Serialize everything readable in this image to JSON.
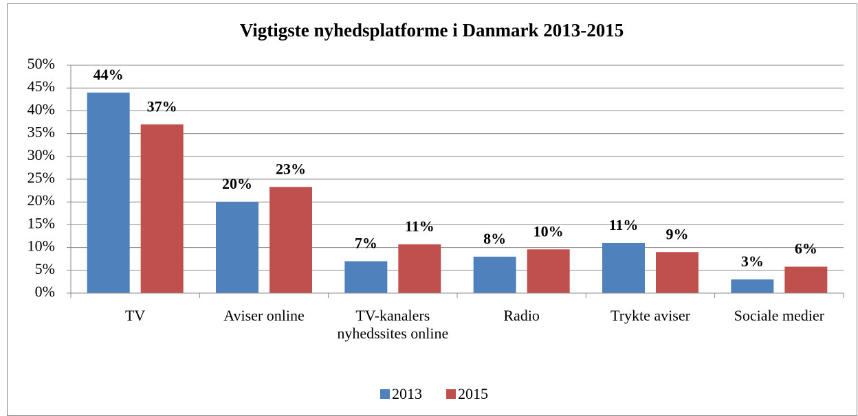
{
  "chart_data": {
    "type": "bar",
    "title": "Vigtigste nyhedsplatforme i Danmark 2013-2015",
    "categories": [
      "TV",
      "Aviser online",
      "TV-kanalers nyhedssites online",
      "Radio",
      "Trykte aviser",
      "Sociale medier"
    ],
    "series": [
      {
        "name": "2013",
        "color": "#4f81bd",
        "values": [
          44,
          20,
          7,
          8,
          11,
          3
        ],
        "value_labels": [
          "44%",
          "20%",
          "7%",
          "8%",
          "11%",
          "3%"
        ]
      },
      {
        "name": "2015",
        "color": "#c0504d",
        "values": [
          37,
          23.3,
          10.7,
          9.6,
          9,
          5.8
        ],
        "value_labels": [
          "37%",
          "23%",
          "11%",
          "10%",
          "9%",
          "6%"
        ]
      }
    ],
    "ylim": [
      0,
      50
    ],
    "yticks": [
      {
        "value": 0,
        "label": "0%"
      },
      {
        "value": 5,
        "label": "5%"
      },
      {
        "value": 10,
        "label": "10%"
      },
      {
        "value": 15,
        "label": "15%"
      },
      {
        "value": 20,
        "label": "20%"
      },
      {
        "value": 25,
        "label": "25%"
      },
      {
        "value": 30,
        "label": "30%"
      },
      {
        "value": 35,
        "label": "35%"
      },
      {
        "value": 40,
        "label": "40%"
      },
      {
        "value": 45,
        "label": "45%"
      },
      {
        "value": 50,
        "label": "50%"
      }
    ],
    "grid": true,
    "legend": "bottom"
  }
}
